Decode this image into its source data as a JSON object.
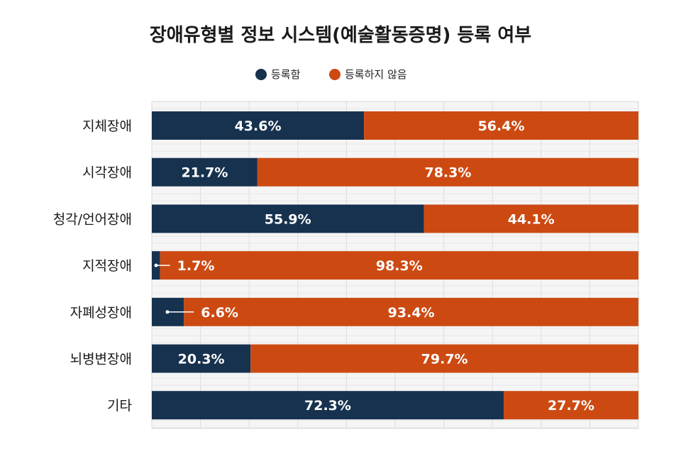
{
  "chart_data": {
    "type": "bar",
    "orientation": "horizontal",
    "stacked": true,
    "title": "장애유형별 정보 시스템(예술활동증명) 등록 여부",
    "categories": [
      "지체장애",
      "시각장애",
      "청각/언어장애",
      "지적장애",
      "자폐성장애",
      "뇌병변장애",
      "기타"
    ],
    "series": [
      {
        "name": "등록함",
        "values": [
          43.6,
          21.7,
          55.9,
          1.7,
          6.6,
          20.3,
          72.3
        ],
        "labels": [
          "43.6%",
          "21.7%",
          "55.9%",
          "1.7%",
          "6.6%",
          "20.3%",
          "72.3%"
        ],
        "color": "#17324f"
      },
      {
        "name": "등록하지 않음",
        "values": [
          56.4,
          78.3,
          44.1,
          98.3,
          93.4,
          79.7,
          27.7
        ],
        "labels": [
          "56.4%",
          "78.3%",
          "44.1%",
          "98.3%",
          "93.4%",
          "79.7%",
          "27.7%"
        ],
        "color": "#cc4a12"
      }
    ],
    "xlim": [
      0,
      100
    ],
    "grid": true,
    "legend_position": "top-center"
  }
}
